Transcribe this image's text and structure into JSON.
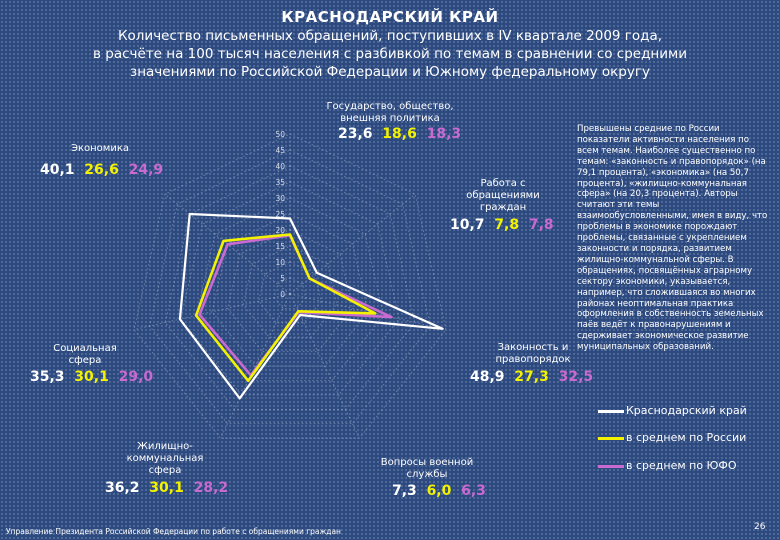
{
  "title": "КРАСНОДАРСКИЙ КРАЙ",
  "subtitle_lines": [
    "Количество письменных обращений, поступивших в IV квартале 2009 года,",
    "в расчёте на 100 тысяч населения с разбивкой по темам в сравнении со средними",
    "значениями по Российской Федерации и Южному федеральному округу"
  ],
  "chart_data": {
    "type": "radar",
    "categories": [
      "Государство, общество, внешняя политика",
      "Работа с обращениями граждан",
      "Законность и правопорядок",
      "Вопросы военной службы",
      "Жилищно-коммунальная сфера",
      "Социальная сфера",
      "Экономика"
    ],
    "category_label_lines": [
      [
        "Государство, общество,",
        "внешняя политика"
      ],
      [
        "Работа с",
        "обращениями",
        "граждан"
      ],
      [
        "Законность и",
        "правопорядок"
      ],
      [
        "Вопросы военной",
        "службы"
      ],
      [
        "Жилищно-",
        "коммунальная",
        "сфера"
      ],
      [
        "Социальная",
        "сфера"
      ],
      [
        "Экономика"
      ]
    ],
    "series": [
      {
        "name": "Краснодарский край",
        "color": "#ffffff",
        "values": [
          23.6,
          10.7,
          48.9,
          7.3,
          36.2,
          35.3,
          40.1
        ]
      },
      {
        "name": "в среднем по России",
        "color": "#f3f200",
        "values": [
          18.6,
          7.8,
          27.3,
          6.0,
          30.1,
          30.1,
          26.6
        ]
      },
      {
        "name": "в среднем по ЮФО",
        "color": "#c86ad0",
        "values": [
          18.3,
          7.8,
          32.5,
          6.3,
          28.2,
          29.0,
          24.9
        ]
      }
    ],
    "value_labels": [
      [
        "23,6",
        "18,6",
        "18,3"
      ],
      [
        "10,7",
        "7,8",
        "7,8"
      ],
      [
        "48,9",
        "27,3",
        "32,5"
      ],
      [
        "7,3",
        "6,0",
        "6,3"
      ],
      [
        "36,2",
        "30,1",
        "28,2"
      ],
      [
        "35,3",
        "30,1",
        "29,0"
      ],
      [
        "40,1",
        "26,6",
        "24,9"
      ]
    ],
    "radial_ticks": [
      "50",
      "45",
      "40",
      "35",
      "30",
      "25",
      "20",
      "15",
      "10",
      "5",
      "0"
    ],
    "rmax": 50,
    "legend_placement": "bottom-right"
  },
  "side_note": "Превышены средние по России показатели активности населения по всем темам. Наиболее существенно по темам: «законность и правопорядок» (на 79,1 процента), «экономика» (на 50,7 процента), «жилищно-коммунальная сфера» (на 20,3 процента). Авторы считают эти темы взаимообусловленными, имея в виду, что проблемы в экономике порождают проблемы, связанные с укреплением законности и порядка, развитием жилищно-коммунальной сферы. В обращениях, посвящённых аграрному сектору экономики, указывается, например, что сложившаяся во многих районах неоптимальная практика оформления в собственность земельных паёв ведёт к правонарушениям и сдерживает экономическое развитие муниципальных образований.",
  "footer": "Управление Президента Российской Федерации по работе с обращениями граждан",
  "page_number": "26"
}
